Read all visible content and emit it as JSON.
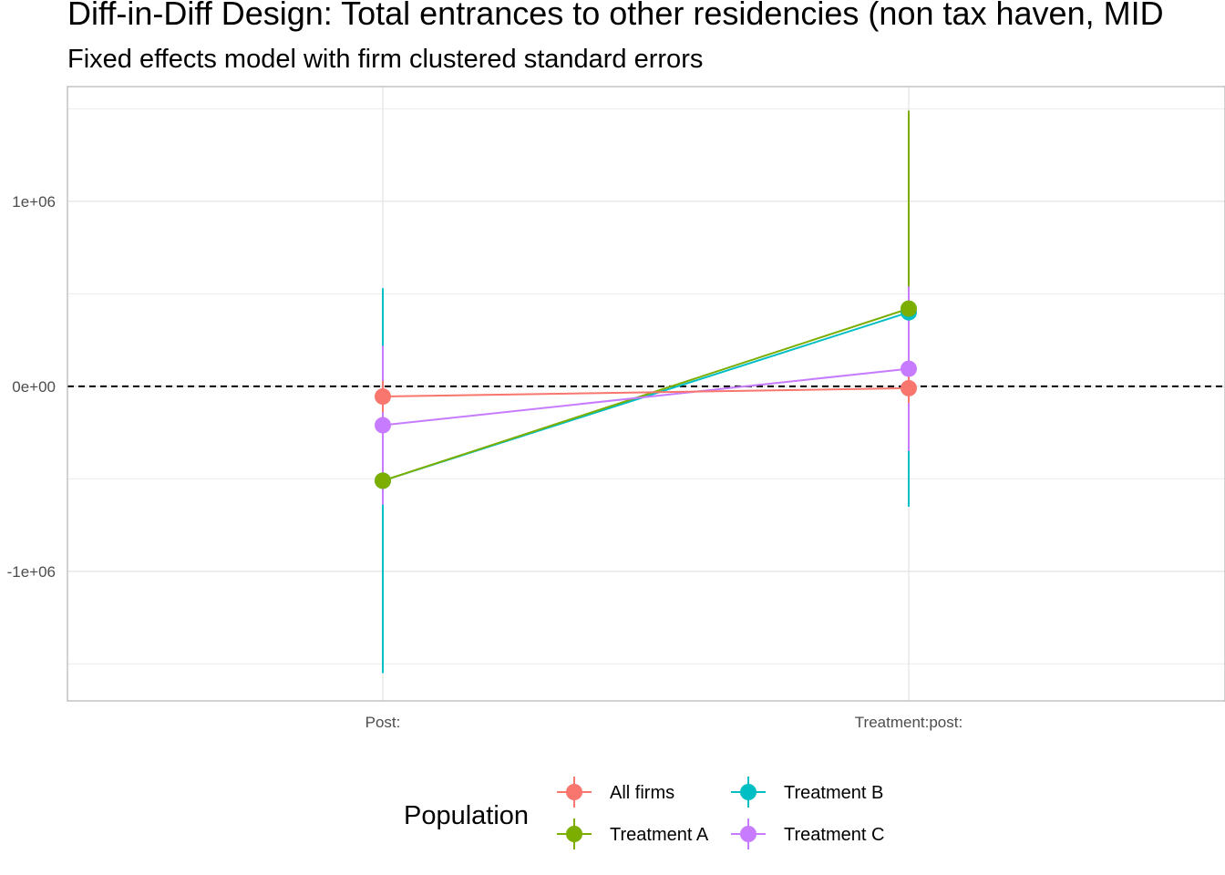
{
  "chart_data": {
    "type": "line",
    "title": "Diff-in-Diff Design: Total entrances to other residencies (non tax haven, MID",
    "subtitle": "Fixed effects model with firm clustered standard errors",
    "xlabel": "",
    "ylabel": "",
    "categories": [
      "Post:",
      "Treatment:post:"
    ],
    "ylim": [
      -1700000,
      1620000
    ],
    "y_ticks": [
      {
        "value": 1000000,
        "label": "1e+06"
      },
      {
        "value": 0,
        "label": "0e+00"
      },
      {
        "value": -1000000,
        "label": "-1e+06"
      }
    ],
    "y_minor_gridlines": [
      1500000,
      500000,
      -500000,
      -1500000
    ],
    "reference_line": {
      "value": 0,
      "style": "dashed",
      "color": "#000000"
    },
    "grid": true,
    "legend": {
      "title": "Population",
      "placement": "bottom"
    },
    "series": [
      {
        "name": "Treatment B",
        "color": "#00BFC4",
        "values": [
          -510000,
          400000
        ],
        "lower": [
          -1550000,
          -650000
        ],
        "upper": [
          530000,
          1460000
        ]
      },
      {
        "name": "Treatment A",
        "color": "#7CAE00",
        "values": [
          -510000,
          420000
        ],
        "lower": [
          -580000,
          -350000
        ],
        "upper": [
          -440000,
          1490000
        ]
      },
      {
        "name": "Treatment C",
        "color": "#C77CFF",
        "values": [
          -210000,
          95000
        ],
        "lower": [
          -640000,
          -350000
        ],
        "upper": [
          220000,
          540000
        ]
      },
      {
        "name": "All firms",
        "color": "#F8766D",
        "values": [
          -55000,
          -10000
        ],
        "lower": [
          -140000,
          -90000
        ],
        "upper": [
          30000,
          70000
        ]
      }
    ]
  }
}
